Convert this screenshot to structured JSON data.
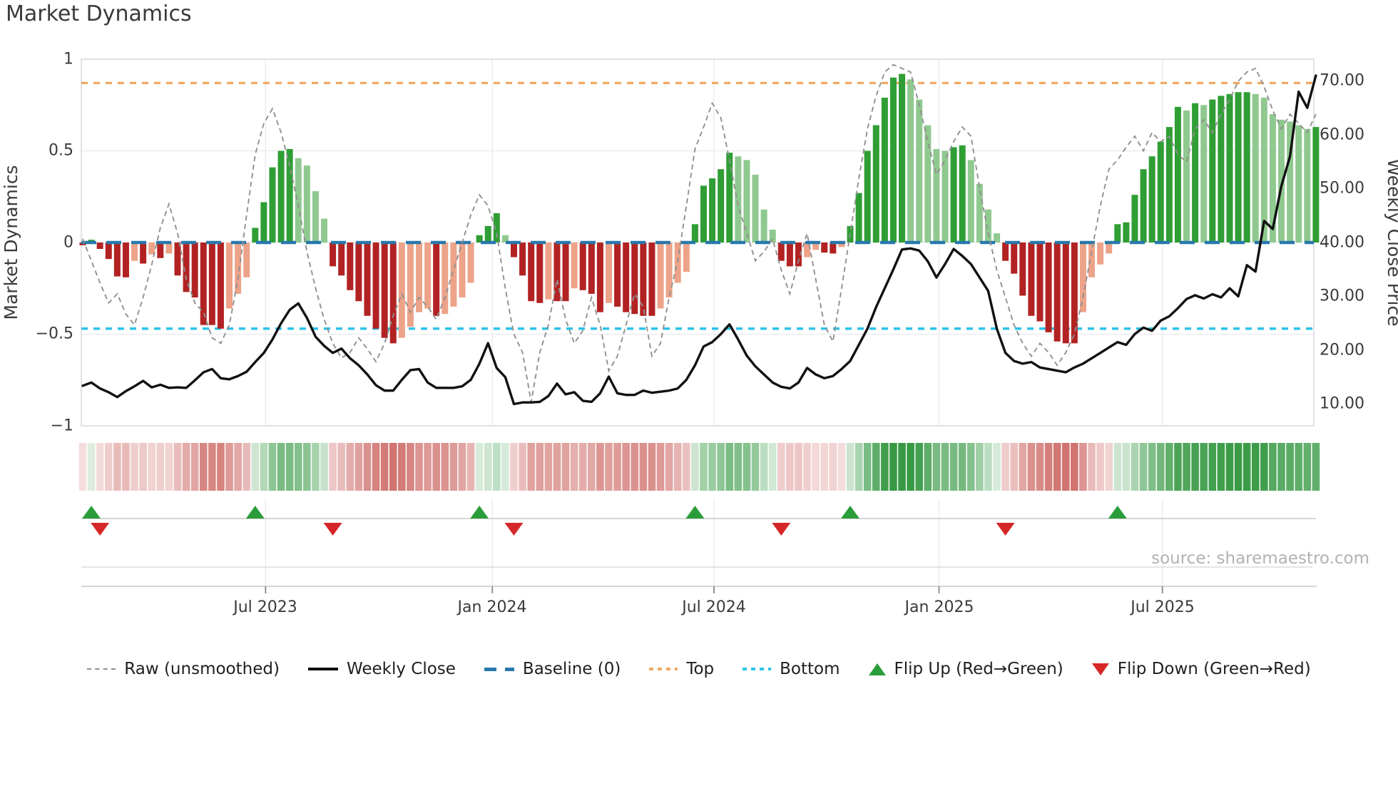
{
  "title": "Market Dynamics",
  "source": "source: sharemaestro.com",
  "axes": {
    "left_title": "Market Dynamics",
    "right_title": "Weekly Close Price",
    "left_ticks": [
      "1",
      "0.5",
      "0",
      "−0.5",
      "−1"
    ],
    "right_ticks": [
      "70.00",
      "60.00",
      "50.00",
      "40.00",
      "30.00",
      "20.00",
      "10.00"
    ],
    "x_ticks": [
      "Jul 2023",
      "Jan 2024",
      "Jul 2024",
      "Jan 2025",
      "Jul 2025"
    ]
  },
  "legend": {
    "raw": "Raw (unsmoothed)",
    "close": "Weekly Close",
    "baseline": "Baseline (0)",
    "top": "Top",
    "bottom": "Bottom",
    "flip_up": "Flip Up (Red→Green)",
    "flip_down": "Flip Down (Green→Red)"
  },
  "colors": {
    "bar_green_strong": "#2f9e34",
    "bar_green_light": "#8fc98f",
    "bar_red_strong": "#b22222",
    "bar_red_light": "#eda389",
    "baseline_blue": "#2878ac",
    "top_orange": "#f2a964",
    "bottom_cyan": "#2cc3e8",
    "raw_gray": "#909090",
    "price_black": "#111111",
    "flip_up_green": "#2a9d3a",
    "flip_down_red": "#d62728",
    "grid": "#e9e9f0",
    "spine": "#d9d9e0",
    "heat_green_base": "44,148,58",
    "heat_red_base": "186,48,42"
  },
  "chart_data": {
    "type": "bar+line combo with heatmap strip and flip markers",
    "title": "Market Dynamics",
    "ylabel_left": "Market Dynamics",
    "ylabel_right": "Weekly Close Price",
    "ylim": [
      -1,
      1
    ],
    "price_ylim": [
      5,
      72
    ],
    "baseline": 0,
    "top_threshold": 0.87,
    "bottom_threshold": -0.47,
    "grid": true,
    "legend_position": "bottom",
    "n_weeks": 144,
    "x_ticks": [
      {
        "label": "Jul 2023",
        "week": 21.2
      },
      {
        "label": "Jan 2024",
        "week": 47.5
      },
      {
        "label": "Jul 2024",
        "week": 73.2
      },
      {
        "label": "Jan 2025",
        "week": 99.3
      },
      {
        "label": "Jul 2025",
        "week": 125.2
      }
    ],
    "smoothed": [
      -0.015,
      0.015,
      -0.035,
      -0.09,
      -0.185,
      -0.19,
      -0.1,
      -0.115,
      -0.065,
      -0.085,
      -0.06,
      -0.18,
      -0.27,
      -0.3,
      -0.45,
      -0.45,
      -0.47,
      -0.36,
      -0.28,
      -0.19,
      0.08,
      0.22,
      0.41,
      0.5,
      0.51,
      0.46,
      0.42,
      0.28,
      0.13,
      -0.13,
      -0.18,
      -0.26,
      -0.32,
      -0.4,
      -0.47,
      -0.52,
      -0.55,
      -0.52,
      -0.46,
      -0.38,
      -0.36,
      -0.4,
      -0.39,
      -0.35,
      -0.3,
      -0.22,
      0.04,
      0.09,
      0.16,
      0.04,
      -0.08,
      -0.18,
      -0.32,
      -0.33,
      -0.31,
      -0.32,
      -0.32,
      -0.25,
      -0.26,
      -0.28,
      -0.38,
      -0.33,
      -0.35,
      -0.38,
      -0.39,
      -0.4,
      -0.4,
      -0.36,
      -0.3,
      -0.22,
      -0.16,
      0.1,
      0.31,
      0.35,
      0.4,
      0.49,
      0.47,
      0.45,
      0.37,
      0.18,
      0.07,
      -0.1,
      -0.13,
      -0.13,
      -0.08,
      -0.04,
      -0.055,
      -0.06,
      -0.025,
      0.09,
      0.27,
      0.5,
      0.64,
      0.79,
      0.9,
      0.92,
      0.89,
      0.78,
      0.64,
      0.51,
      0.5,
      0.52,
      0.53,
      0.45,
      0.32,
      0.18,
      0.05,
      -0.1,
      -0.17,
      -0.29,
      -0.4,
      -0.43,
      -0.49,
      -0.54,
      -0.55,
      -0.55,
      -0.38,
      -0.19,
      -0.12,
      -0.06,
      0.1,
      0.11,
      0.26,
      0.4,
      0.47,
      0.55,
      0.63,
      0.74,
      0.72,
      0.76,
      0.75,
      0.78,
      0.8,
      0.81,
      0.82,
      0.82,
      0.81,
      0.79,
      0.7,
      0.67,
      0.66,
      0.64,
      0.62,
      0.63
    ],
    "raw": [
      0.02,
      -0.1,
      -0.22,
      -0.33,
      -0.28,
      -0.39,
      -0.45,
      -0.3,
      -0.12,
      0.08,
      0.21,
      0.05,
      -0.2,
      -0.33,
      -0.38,
      -0.52,
      -0.55,
      -0.45,
      -0.2,
      0.15,
      0.48,
      0.65,
      0.73,
      0.6,
      0.42,
      0.2,
      -0.05,
      -0.25,
      -0.42,
      -0.55,
      -0.63,
      -0.6,
      -0.52,
      -0.58,
      -0.65,
      -0.55,
      -0.4,
      -0.28,
      -0.38,
      -0.3,
      -0.35,
      -0.42,
      -0.3,
      -0.15,
      0.0,
      0.15,
      0.26,
      0.2,
      0.05,
      -0.25,
      -0.5,
      -0.6,
      -0.87,
      -0.6,
      -0.45,
      -0.2,
      -0.42,
      -0.55,
      -0.48,
      -0.3,
      -0.45,
      -0.7,
      -0.62,
      -0.45,
      -0.28,
      -0.35,
      -0.62,
      -0.55,
      -0.3,
      -0.1,
      0.2,
      0.51,
      0.63,
      0.76,
      0.68,
      0.45,
      0.2,
      0.05,
      -0.1,
      -0.05,
      0.02,
      -0.15,
      -0.28,
      -0.1,
      0.05,
      -0.2,
      -0.45,
      -0.54,
      -0.25,
      0.05,
      0.35,
      0.62,
      0.8,
      0.93,
      0.97,
      0.95,
      0.93,
      0.75,
      0.55,
      0.37,
      0.45,
      0.55,
      0.63,
      0.58,
      0.3,
      0.05,
      -0.15,
      -0.3,
      -0.45,
      -0.55,
      -0.62,
      -0.55,
      -0.6,
      -0.67,
      -0.6,
      -0.5,
      -0.3,
      -0.05,
      0.2,
      0.4,
      0.45,
      0.52,
      0.58,
      0.5,
      0.6,
      0.55,
      0.58,
      0.48,
      0.44,
      0.62,
      0.67,
      0.6,
      0.7,
      0.78,
      0.88,
      0.93,
      0.95,
      0.85,
      0.72,
      0.62,
      0.7,
      0.65,
      0.6,
      0.7
    ],
    "price": [
      13.4,
      14.0,
      12.9,
      12.2,
      11.3,
      12.4,
      13.3,
      14.3,
      13.1,
      13.6,
      13.0,
      13.1,
      13.0,
      14.4,
      15.9,
      16.5,
      14.8,
      14.6,
      15.2,
      16.0,
      17.8,
      19.5,
      22.0,
      25.0,
      27.5,
      28.7,
      26.0,
      22.5,
      20.8,
      19.5,
      20.3,
      18.5,
      17.2,
      15.5,
      13.5,
      12.5,
      12.5,
      14.5,
      16.3,
      16.5,
      14.0,
      13.0,
      13.0,
      13.0,
      13.3,
      14.5,
      17.5,
      21.3,
      16.7,
      15.0,
      10.0,
      10.3,
      10.3,
      10.4,
      11.5,
      13.8,
      11.8,
      12.2,
      10.6,
      10.4,
      12.0,
      15.1,
      12.0,
      11.7,
      11.7,
      12.5,
      12.1,
      12.3,
      12.5,
      12.9,
      14.5,
      17.2,
      20.7,
      21.5,
      23.0,
      24.8,
      22.0,
      19.0,
      17.0,
      15.5,
      14.0,
      13.2,
      12.9,
      14.0,
      16.7,
      15.5,
      14.8,
      15.2,
      16.5,
      18.0,
      21.0,
      24.0,
      28.0,
      31.5,
      35.0,
      38.7,
      38.9,
      38.5,
      36.5,
      33.5,
      36.0,
      38.8,
      37.5,
      36.0,
      33.5,
      31.0,
      24.0,
      19.5,
      18.0,
      17.5,
      17.8,
      16.8,
      16.5,
      16.2,
      15.9,
      16.8,
      17.5,
      18.5,
      19.5,
      20.5,
      21.5,
      21.0,
      23.0,
      24.2,
      23.6,
      25.5,
      26.3,
      27.8,
      29.5,
      30.2,
      29.6,
      30.4,
      29.8,
      31.5,
      30.0,
      35.8,
      34.6,
      44.0,
      42.5,
      50.5,
      56.0,
      68.0,
      65.0,
      71.0
    ],
    "flips_up": [
      1,
      20,
      46,
      71,
      89,
      120
    ],
    "flips_down": [
      2,
      29,
      50,
      81,
      107
    ]
  }
}
